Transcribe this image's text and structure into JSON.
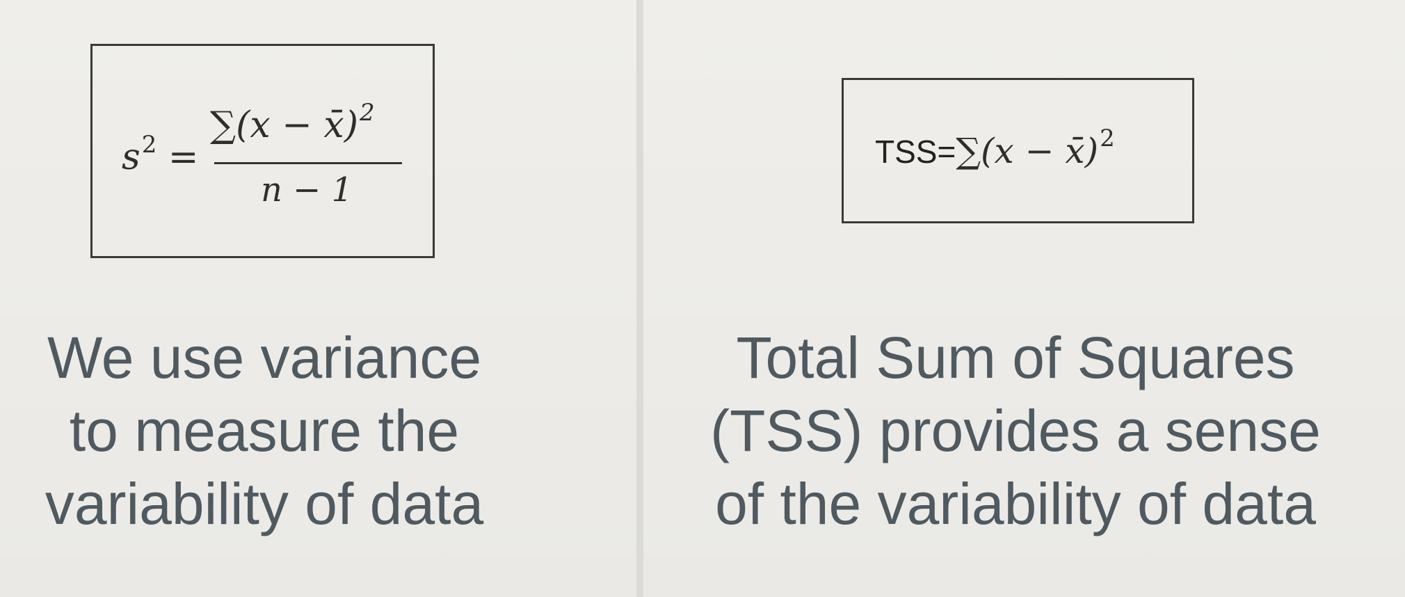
{
  "left": {
    "formula": {
      "lhs_var": "s",
      "lhs_exp": "2",
      "equals": "=",
      "numerator": "∑(x − x̄)",
      "numerator_exp": "2",
      "denominator": "n − 1"
    },
    "caption": [
      "We use variance",
      "to measure the",
      "variability of data"
    ]
  },
  "right": {
    "formula": {
      "label": "TSS=",
      "expression": "∑(x − x̄)",
      "exp": "2"
    },
    "caption": [
      "Total Sum of Squares",
      "(TSS) provides a sense",
      "of the variability of data"
    ]
  },
  "colors": {
    "background": "#ecebe7",
    "caption_text": "#4f5960",
    "box_border": "#3a3a3a"
  }
}
